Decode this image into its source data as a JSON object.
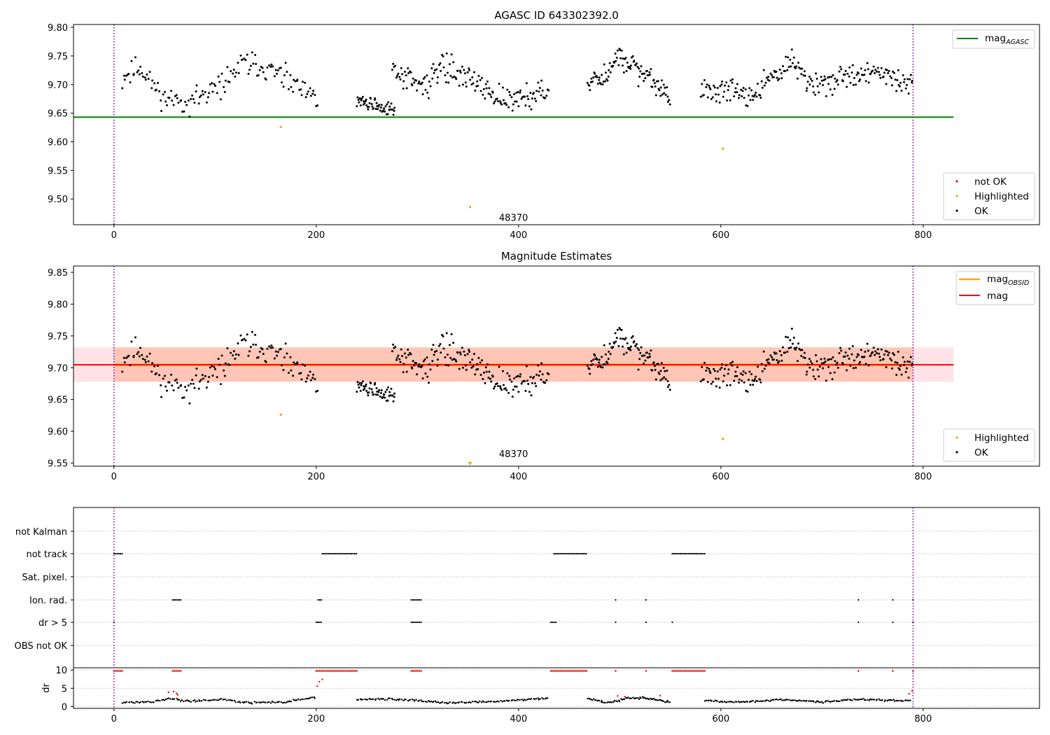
{
  "figure": {
    "background": "#ffffff",
    "colors": {
      "ok": "#000000",
      "highlighted": "#ffa500",
      "not_ok": "#ff0000",
      "mag_agasc": "#008000",
      "mag_obsid": "#ffa500",
      "mag": "#ff0000",
      "band_mag": "#ffc0cb",
      "band_obsid": "#ffa07a",
      "boundary": "#800080",
      "grid": "#b0b0b0"
    }
  },
  "chart_data": [
    {
      "type": "scatter",
      "title": "AGASC ID 643302392.0",
      "xlim": [
        -40,
        915
      ],
      "ylim": [
        9.455,
        9.805
      ],
      "x_ticks": [
        "0",
        "200",
        "400",
        "600",
        "800"
      ],
      "x_tick_values": [
        0,
        200,
        400,
        600,
        800
      ],
      "y_ticks": [
        "9.50",
        "9.55",
        "9.60",
        "9.65",
        "9.70",
        "9.75",
        "9.80"
      ],
      "y_tick_values": [
        9.5,
        9.55,
        9.6,
        9.65,
        9.7,
        9.75,
        9.8
      ],
      "obs_boundaries": [
        0,
        790
      ],
      "obs_label": {
        "text": "48370",
        "x": 395,
        "y": 9.468
      },
      "mag_agasc": {
        "value": 9.643,
        "x_range": [
          -40,
          830
        ]
      },
      "legend_lines": [
        {
          "label": "mag",
          "subscript": "AGASC"
        }
      ],
      "legend_points": [
        {
          "label": "not OK",
          "color_key": "not_ok"
        },
        {
          "label": "Highlighted",
          "color_key": "highlighted"
        },
        {
          "label": "OK",
          "color_key": "ok"
        }
      ],
      "highlighted_points": [
        [
          165,
          9.626
        ],
        [
          352,
          9.486
        ],
        [
          602,
          9.588
        ]
      ],
      "ok_segments": [
        {
          "x_range": [
            8,
            202
          ],
          "count": 150,
          "knots": [
            [
              8,
              9.71
            ],
            [
              25,
              9.73
            ],
            [
              50,
              9.675
            ],
            [
              75,
              9.67
            ],
            [
              100,
              9.69
            ],
            [
              130,
              9.74
            ],
            [
              160,
              9.72
            ],
            [
              185,
              9.69
            ],
            [
              202,
              9.67
            ]
          ],
          "noise": 0.016,
          "seed": 11
        },
        {
          "x_range": [
            240,
            278
          ],
          "count": 55,
          "knots": [
            [
              240,
              9.675
            ],
            [
              260,
              9.66
            ],
            [
              278,
              9.66
            ]
          ],
          "noise": 0.01,
          "seed": 12
        },
        {
          "x_range": [
            275,
            430
          ],
          "count": 165,
          "knots": [
            [
              275,
              9.73
            ],
            [
              290,
              9.71
            ],
            [
              310,
              9.7
            ],
            [
              325,
              9.735
            ],
            [
              350,
              9.715
            ],
            [
              375,
              9.685
            ],
            [
              395,
              9.67
            ],
            [
              420,
              9.69
            ],
            [
              430,
              9.685
            ]
          ],
          "noise": 0.017,
          "seed": 13
        },
        {
          "x_range": [
            468,
            550
          ],
          "count": 105,
          "knots": [
            [
              468,
              9.71
            ],
            [
              485,
              9.715
            ],
            [
              500,
              9.75
            ],
            [
              520,
              9.72
            ],
            [
              538,
              9.7
            ],
            [
              550,
              9.67
            ]
          ],
          "noise": 0.015,
          "seed": 14
        },
        {
          "x_range": [
            580,
            790
          ],
          "count": 220,
          "knots": [
            [
              580,
              9.69
            ],
            [
              610,
              9.69
            ],
            [
              630,
              9.68
            ],
            [
              655,
              9.72
            ],
            [
              670,
              9.74
            ],
            [
              690,
              9.7
            ],
            [
              720,
              9.71
            ],
            [
              750,
              9.725
            ],
            [
              770,
              9.71
            ],
            [
              790,
              9.7
            ]
          ],
          "noise": 0.016,
          "seed": 15
        }
      ]
    },
    {
      "type": "scatter",
      "title": "Magnitude Estimates",
      "xlim": [
        -40,
        915
      ],
      "ylim": [
        9.545,
        9.86
      ],
      "x_ticks": [
        "0",
        "200",
        "400",
        "600",
        "800"
      ],
      "x_tick_values": [
        0,
        200,
        400,
        600,
        800
      ],
      "y_ticks": [
        "9.55",
        "9.60",
        "9.65",
        "9.70",
        "9.75",
        "9.80",
        "9.85"
      ],
      "y_tick_values": [
        9.55,
        9.6,
        9.65,
        9.7,
        9.75,
        9.8,
        9.85
      ],
      "obs_boundaries": [
        0,
        790
      ],
      "obs_label": {
        "text": "48370",
        "x": 395,
        "y": 9.557
      },
      "mag": {
        "value": 9.7045,
        "band": [
          9.678,
          9.732
        ],
        "x_range": [
          -40,
          830
        ]
      },
      "mag_obsid": {
        "value": 9.7045,
        "band": [
          9.678,
          9.732
        ],
        "x_range": [
          0,
          790
        ]
      },
      "legend_lines": [
        {
          "label": "mag",
          "subscript": "OBSID",
          "color_key": "mag_obsid"
        },
        {
          "label": "mag",
          "subscript": "",
          "color_key": "mag"
        }
      ],
      "legend_points": [
        {
          "label": "Highlighted",
          "color_key": "highlighted"
        },
        {
          "label": "OK",
          "color_key": "ok"
        }
      ],
      "highlighted_points": [
        [
          165,
          9.626
        ],
        [
          602,
          9.588
        ]
      ],
      "clipped_point": {
        "x": 352,
        "y": 9.486
      },
      "ok_segments_from": 0
    },
    {
      "type": "scatter",
      "title": "",
      "xlim": [
        -40,
        915
      ],
      "x_ticks": [
        "0",
        "200",
        "400",
        "600",
        "800"
      ],
      "x_tick_values": [
        0,
        200,
        400,
        600,
        800
      ],
      "obs_boundaries": [
        0,
        790
      ],
      "flag_rows": [
        "not Kalman",
        "not track",
        "Sat. pixel.",
        "Ion. rad.",
        "dr > 5",
        "OBS not OK"
      ],
      "flag_runs": {
        "not track": [
          [
            0,
            8
          ],
          [
            206,
            240
          ],
          [
            435,
            468
          ],
          [
            552,
            584
          ]
        ],
        "Ion. rad.": [
          [
            58,
            66
          ],
          [
            202,
            206
          ],
          [
            294,
            304
          ],
          [
            496,
            496
          ],
          [
            526,
            526
          ],
          [
            736,
            736
          ],
          [
            770,
            770
          ],
          [
            790,
            790
          ]
        ],
        "dr > 5": [
          [
            0,
            0
          ],
          [
            200,
            206
          ],
          [
            294,
            304
          ],
          [
            432,
            437
          ],
          [
            496,
            496
          ],
          [
            526,
            526
          ],
          [
            552,
            552
          ],
          [
            736,
            736
          ],
          [
            770,
            770
          ],
          [
            790,
            790
          ]
        ]
      },
      "dr_panel": {
        "ylabel": "dr",
        "ylim": [
          -0.5,
          10.6
        ],
        "y_ticks": [
          "0",
          "5",
          "10"
        ],
        "y_tick_values": [
          0,
          5,
          10
        ],
        "dr_high": [
          [
            0,
            8
          ],
          [
            58,
            66
          ],
          [
            200,
            240
          ],
          [
            294,
            304
          ],
          [
            432,
            468
          ],
          [
            496,
            496
          ],
          [
            526,
            526
          ],
          [
            552,
            584
          ],
          [
            736,
            736
          ],
          [
            770,
            770
          ],
          [
            790,
            790
          ]
        ],
        "dr_red_points": [
          [
            54,
            3.9
          ],
          [
            59,
            4.1
          ],
          [
            62,
            3.6
          ],
          [
            63,
            3.2
          ],
          [
            201,
            5.6
          ],
          [
            203,
            6.8
          ],
          [
            206,
            7.4
          ],
          [
            498,
            2.9
          ],
          [
            505,
            2.7
          ],
          [
            540,
            3.0
          ],
          [
            786,
            3.5
          ],
          [
            789,
            4.3
          ]
        ],
        "dr_segments": [
          {
            "x_range": [
              8,
              200
            ],
            "knots": [
              [
                8,
                1.1
              ],
              [
                40,
                1.4
              ],
              [
                55,
                2.3
              ],
              [
                70,
                1.5
              ],
              [
                110,
                1.9
              ],
              [
                130,
                1.0
              ],
              [
                170,
                1.3
              ],
              [
                200,
                2.6
              ]
            ],
            "count": 130,
            "noise": 0.2,
            "seed": 21
          },
          {
            "x_range": [
              240,
              430
            ],
            "knots": [
              [
                240,
                1.8
              ],
              [
                270,
                2.1
              ],
              [
                300,
                1.7
              ],
              [
                330,
                1.0
              ],
              [
                380,
                1.4
              ],
              [
                430,
                2.3
              ]
            ],
            "count": 130,
            "noise": 0.2,
            "seed": 22
          },
          {
            "x_range": [
              468,
              550
            ],
            "knots": [
              [
                468,
                2.2
              ],
              [
                490,
                1.0
              ],
              [
                510,
                2.4
              ],
              [
                530,
                2.3
              ],
              [
                545,
                1.4
              ]
            ],
            "count": 70,
            "noise": 0.25,
            "seed": 23
          },
          {
            "x_range": [
              584,
              788
            ],
            "knots": [
              [
                584,
                1.6
              ],
              [
                620,
                1.2
              ],
              [
                660,
                1.9
              ],
              [
                700,
                1.2
              ],
              [
                730,
                2.0
              ],
              [
                760,
                1.7
              ],
              [
                788,
                1.6
              ]
            ],
            "count": 150,
            "noise": 0.2,
            "seed": 24
          }
        ]
      }
    }
  ]
}
